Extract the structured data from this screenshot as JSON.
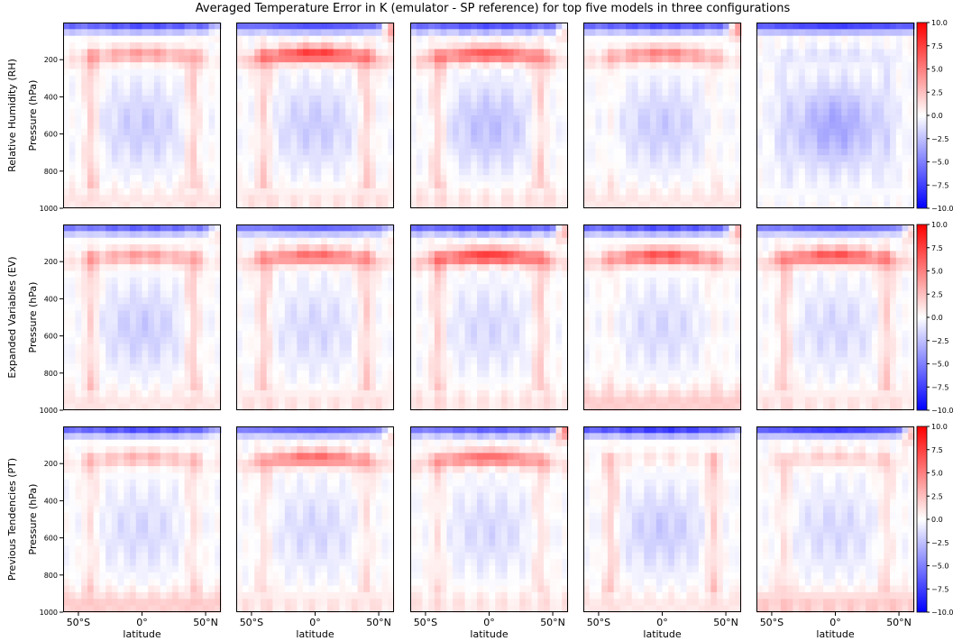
{
  "title": "Averaged Temperature Error in K (emulator - SP reference) for top five models in three configurations",
  "rows": [
    {
      "label": "Relative Humidity (RH)",
      "ylabel": "Pressure (hPa)"
    },
    {
      "label": "Expanded Variables (EV)",
      "ylabel": "Pressure (hPa)"
    },
    {
      "label": "Previous Tendencies (PT)",
      "ylabel": "Pressure (hPa)"
    }
  ],
  "chart_data": {
    "type": "heatmap",
    "grid_rows": 3,
    "grid_cols": 5,
    "xlabel": "latitude",
    "ylabel": "Pressure (hPa)",
    "xticks": [
      {
        "value": -50,
        "label": "50°S"
      },
      {
        "value": 0,
        "label": "0°"
      },
      {
        "value": 50,
        "label": "50°N"
      }
    ],
    "yticks": [
      200,
      400,
      600,
      800,
      1000
    ],
    "xlim": [
      -62,
      62
    ],
    "ylim": [
      1000,
      0
    ],
    "colormap": {
      "name": "bwr",
      "low": "#0000ff",
      "mid": "#ffffff",
      "high": "#ff0000"
    },
    "colorbar": {
      "vmin": -10.0,
      "vmax": 10.0,
      "ticks": [
        "10.0",
        "7.5",
        "5.0",
        "2.5",
        "0.0",
        "−2.5",
        "−5.0",
        "−7.5",
        "−10.0"
      ]
    },
    "panels": [
      {
        "row": 0,
        "col": 0,
        "surface_cold": -9,
        "ns_hot": 3,
        "upper_warm": 4,
        "arch_warm": 3,
        "interior": -2,
        "lower": 0.5
      },
      {
        "row": 0,
        "col": 1,
        "surface_cold": -9,
        "ns_hot": 9,
        "upper_warm": 8,
        "arch_warm": 3,
        "interior": -2,
        "lower": 0.5
      },
      {
        "row": 0,
        "col": 2,
        "surface_cold": -9,
        "ns_hot": 5,
        "upper_warm": 7,
        "arch_warm": 3,
        "interior": -2.5,
        "lower": 0.5
      },
      {
        "row": 0,
        "col": 3,
        "surface_cold": -9,
        "ns_hot": 10,
        "upper_warm": 5,
        "arch_warm": 1,
        "interior": -2,
        "lower": 0.5
      },
      {
        "row": 0,
        "col": 4,
        "surface_cold": -10,
        "ns_hot": 0,
        "upper_warm": -1,
        "arch_warm": -1,
        "interior": -3.5,
        "lower": 0
      },
      {
        "row": 1,
        "col": 0,
        "surface_cold": -8,
        "ns_hot": 5,
        "upper_warm": 4,
        "arch_warm": 3,
        "interior": -2,
        "lower": 0.5
      },
      {
        "row": 1,
        "col": 1,
        "surface_cold": -8,
        "ns_hot": 3,
        "upper_warm": 6,
        "arch_warm": 3,
        "interior": -1.5,
        "lower": 0.5
      },
      {
        "row": 1,
        "col": 2,
        "surface_cold": -9,
        "ns_hot": 8,
        "upper_warm": 8,
        "arch_warm": 3,
        "interior": -1.5,
        "lower": 0.5
      },
      {
        "row": 1,
        "col": 3,
        "surface_cold": -9,
        "ns_hot": 9,
        "upper_warm": 7,
        "arch_warm": 1,
        "interior": -1.5,
        "lower": 1
      },
      {
        "row": 1,
        "col": 4,
        "surface_cold": -8,
        "ns_hot": 6,
        "upper_warm": 7,
        "arch_warm": 3,
        "interior": -1.5,
        "lower": 0.5
      },
      {
        "row": 2,
        "col": 0,
        "surface_cold": -9,
        "ns_hot": 3,
        "upper_warm": 3,
        "arch_warm": 2,
        "interior": -1.5,
        "lower": 1
      },
      {
        "row": 2,
        "col": 1,
        "surface_cold": -8,
        "ns_hot": 5,
        "upper_warm": 6,
        "arch_warm": 2,
        "interior": -1.5,
        "lower": 0.5
      },
      {
        "row": 2,
        "col": 2,
        "surface_cold": -8,
        "ns_hot": 10,
        "upper_warm": 6,
        "arch_warm": 2,
        "interior": -1.5,
        "lower": 0.5
      },
      {
        "row": 2,
        "col": 3,
        "surface_cold": -10,
        "ns_hot": 3,
        "upper_warm": 1,
        "arch_warm": 3,
        "interior": -2,
        "lower": 0.5
      },
      {
        "row": 2,
        "col": 4,
        "surface_cold": -10,
        "ns_hot": 8,
        "upper_warm": 2,
        "arch_warm": 2,
        "interior": -1.5,
        "lower": 1
      }
    ]
  }
}
